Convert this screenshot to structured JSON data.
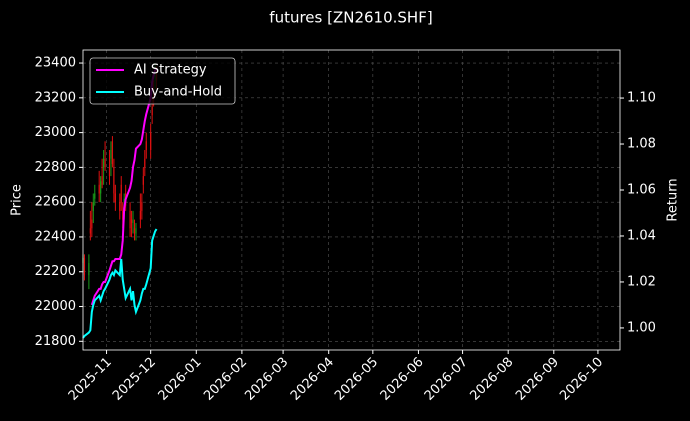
{
  "chart_data": {
    "type": "candlestick",
    "title": "futures [ZN2610.SHF]",
    "ylabel": "Price",
    "y2label": "Return",
    "dates": [
      "2025-10-16",
      "2025-10-17",
      "2025-10-20",
      "2025-10-21",
      "2025-10-22",
      "2025-10-23",
      "2025-10-24",
      "2025-10-27",
      "2025-10-28",
      "2025-10-29",
      "2025-10-30",
      "2025-10-31",
      "2025-11-03",
      "2025-11-04",
      "2025-11-05",
      "2025-11-06",
      "2025-11-07",
      "2025-11-10",
      "2025-11-11",
      "2025-11-12",
      "2025-11-13",
      "2025-11-14",
      "2025-11-17",
      "2025-11-18",
      "2025-11-19",
      "2025-11-20",
      "2025-11-21",
      "2025-11-24",
      "2025-11-25",
      "2025-11-26",
      "2025-11-27",
      "2025-11-28",
      "2025-12-01",
      "2025-12-02",
      "2025-12-03",
      "2025-12-04",
      "2025-12-05"
    ],
    "open": [
      22250,
      22280,
      22180,
      22450,
      22500,
      22550,
      22620,
      22700,
      22650,
      22750,
      22800,
      22850,
      22800,
      22850,
      22950,
      22800,
      22650,
      22600,
      22700,
      22550,
      22600,
      22650,
      22550,
      22500,
      22480,
      22450,
      22420,
      22550,
      22600,
      22750,
      22850,
      22950,
      23000,
      23150,
      23250,
      23300,
      23350
    ],
    "high": [
      22300,
      22300,
      22300,
      22550,
      22600,
      22650,
      22700,
      22780,
      22750,
      22850,
      22900,
      22950,
      22900,
      22950,
      22980,
      22850,
      22700,
      22650,
      22750,
      22600,
      22650,
      22700,
      22600,
      22550,
      22550,
      22500,
      22480,
      22650,
      22650,
      22800,
      22900,
      23000,
      23050,
      23200,
      23300,
      23400,
      23380
    ],
    "low": [
      22200,
      22150,
      22100,
      22380,
      22400,
      22480,
      22580,
      22600,
      22600,
      22680,
      22700,
      22780,
      22700,
      22750,
      22800,
      22600,
      22550,
      22500,
      22550,
      22450,
      22500,
      22550,
      22400,
      22400,
      22420,
      22380,
      22380,
      22450,
      22500,
      22650,
      22750,
      22850,
      22850,
      23050,
      23150,
      23250,
      23250
    ],
    "close": [
      22280,
      22180,
      22250,
      22420,
      22450,
      22600,
      22650,
      22650,
      22720,
      22700,
      22850,
      22800,
      22750,
      22900,
      22820,
      22650,
      22600,
      22550,
      22600,
      22500,
      22620,
      22580,
      22450,
      22480,
      22500,
      22420,
      22450,
      22500,
      22550,
      22700,
      22800,
      22900,
      22900,
      23100,
      23200,
      23350,
      23300
    ],
    "up_color": "#1a9c1a",
    "down_color": "#e01010",
    "series": [
      {
        "name": "AI Strategy",
        "color": "#ff00ff",
        "axis": "y2",
        "values": [
          null,
          null,
          null,
          null,
          1.01,
          1.012,
          1.014,
          1.017,
          1.017,
          1.019,
          1.02,
          1.02,
          1.025,
          1.027,
          1.029,
          1.029,
          1.03,
          1.03,
          1.032,
          1.038,
          1.052,
          1.056,
          1.061,
          1.064,
          1.07,
          1.073,
          1.078,
          1.08,
          1.082,
          1.086,
          1.09,
          1.093,
          1.1,
          1.107,
          1.11,
          1.112,
          1.113
        ]
      },
      {
        "name": "Buy-and-Hold",
        "color": "#00ffff",
        "axis": "y2",
        "values": [
          0.9957,
          0.9965,
          0.998,
          0.999,
          1.007,
          1.01,
          1.012,
          1.014,
          1.012,
          1.014,
          1.016,
          1.017,
          1.021,
          1.023,
          1.024,
          1.023,
          1.025,
          1.023,
          1.03,
          1.021,
          1.017,
          1.013,
          1.017,
          1.012,
          1.016,
          1.01,
          1.007,
          1.012,
          1.015,
          1.017,
          1.017,
          1.019,
          1.026,
          1.038,
          1.04,
          1.042,
          1.043
        ]
      }
    ],
    "xlim": [
      "2025-10-16",
      "2026-10-16"
    ],
    "xticks": [
      "2025-11",
      "2025-12",
      "2026-01",
      "2026-02",
      "2026-03",
      "2026-04",
      "2026-05",
      "2026-06",
      "2026-07",
      "2026-08",
      "2026-09",
      "2026-10"
    ],
    "ylim": [
      21750,
      23475
    ],
    "yticks": [
      21800,
      22000,
      22200,
      22400,
      22600,
      22800,
      23000,
      23200,
      23400
    ],
    "y2lim": [
      0.9904,
      1.1209
    ],
    "y2ticks": [
      {
        "value": 1,
        "label": "1.00"
      },
      {
        "value": 1.02,
        "label": "1.02"
      },
      {
        "value": 1.04,
        "label": "1.04"
      },
      {
        "value": 1.06,
        "label": "1.06"
      },
      {
        "value": 1.08,
        "label": "1.08"
      },
      {
        "value": 1.1,
        "label": "1.10"
      }
    ],
    "grid": true,
    "legend": "upper-left"
  }
}
